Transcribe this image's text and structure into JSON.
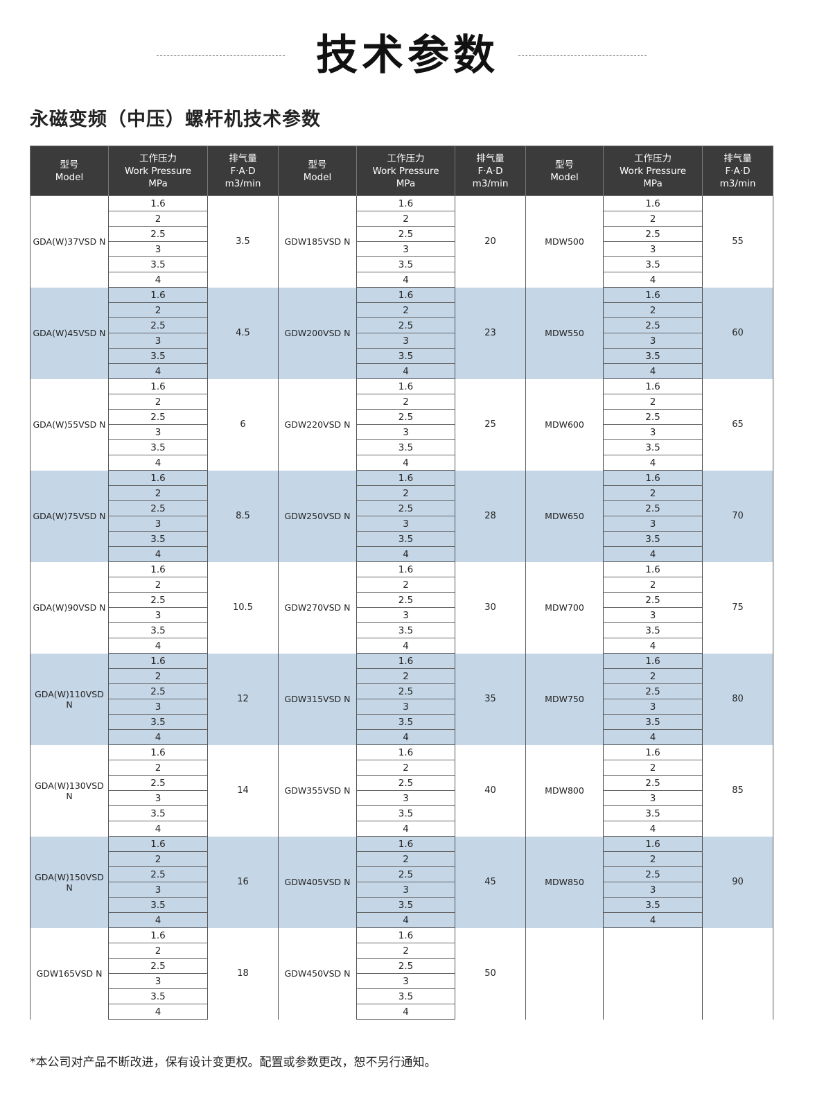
{
  "page_title": "技术参数",
  "section_title": "永磁变频（中压）螺杆机技术参数",
  "headers": {
    "model": [
      "型号",
      "Model"
    ],
    "pressure": [
      "工作压力",
      "Work Pressure",
      "MPa"
    ],
    "fad": [
      "排气量",
      "F·A·D",
      "m3/min"
    ]
  },
  "pressures": [
    "1.6",
    "2",
    "2.5",
    "3",
    "3.5",
    "4"
  ],
  "groups": [
    [
      {
        "model": "GDA(W)37VSD N",
        "fad": "3.5"
      },
      {
        "model": "GDW185VSD N",
        "fad": "20"
      },
      {
        "model": "MDW500",
        "fad": "55"
      }
    ],
    [
      {
        "model": "GDA(W)45VSD N",
        "fad": "4.5"
      },
      {
        "model": "GDW200VSD N",
        "fad": "23"
      },
      {
        "model": "MDW550",
        "fad": "60"
      }
    ],
    [
      {
        "model": "GDA(W)55VSD N",
        "fad": "6"
      },
      {
        "model": "GDW220VSD N",
        "fad": "25"
      },
      {
        "model": "MDW600",
        "fad": "65"
      }
    ],
    [
      {
        "model": "GDA(W)75VSD N",
        "fad": "8.5"
      },
      {
        "model": "GDW250VSD N",
        "fad": "28"
      },
      {
        "model": "MDW650",
        "fad": "70"
      }
    ],
    [
      {
        "model": "GDA(W)90VSD N",
        "fad": "10.5"
      },
      {
        "model": "GDW270VSD N",
        "fad": "30"
      },
      {
        "model": "MDW700",
        "fad": "75"
      }
    ],
    [
      {
        "model": "GDA(W)110VSD N",
        "fad": "12"
      },
      {
        "model": "GDW315VSD N",
        "fad": "35"
      },
      {
        "model": "MDW750",
        "fad": "80"
      }
    ],
    [
      {
        "model": "GDA(W)130VSD N",
        "fad": "14"
      },
      {
        "model": "GDW355VSD N",
        "fad": "40"
      },
      {
        "model": "MDW800",
        "fad": "85"
      }
    ],
    [
      {
        "model": "GDA(W)150VSD N",
        "fad": "16"
      },
      {
        "model": "GDW405VSD N",
        "fad": "45"
      },
      {
        "model": "MDW850",
        "fad": "90"
      }
    ],
    [
      {
        "model": "GDW165VSD N",
        "fad": "18"
      },
      {
        "model": "GDW450VSD N",
        "fad": "50"
      },
      null
    ]
  ],
  "colors": {
    "header_bg": "#3b3b3b",
    "band_bg": "#c5d6e6"
  },
  "footer": "*本公司对产品不断改进，保有设计变更权。配置或参数更改，恕不另行通知。"
}
